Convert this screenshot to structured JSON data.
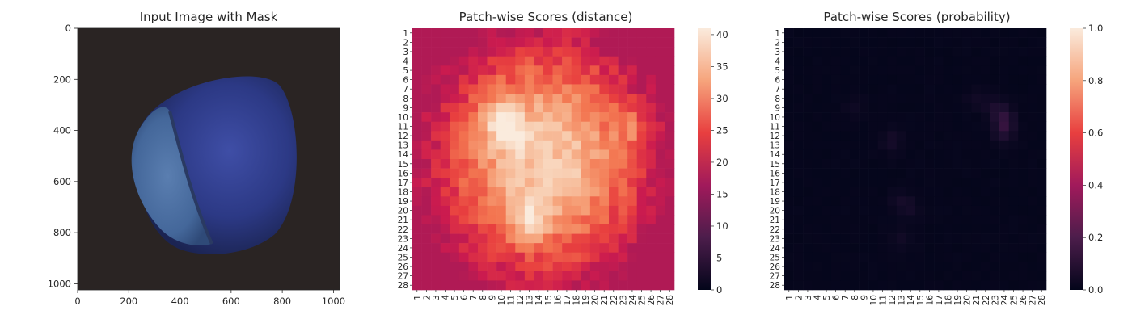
{
  "chart_data": [
    {
      "type": "image",
      "title": "Input Image with Mask",
      "xlim": [
        0,
        1024
      ],
      "ylim": [
        1024,
        0
      ],
      "x_ticks": [
        "0",
        "200",
        "400",
        "600",
        "800",
        "1000"
      ],
      "y_ticks": [
        "0",
        "200",
        "400",
        "600",
        "800",
        "1000"
      ]
    },
    {
      "type": "heatmap",
      "title": "Patch-wise Scores (distance)",
      "rows": 28,
      "cols": 28,
      "row_labels": [
        "1",
        "2",
        "3",
        "4",
        "5",
        "6",
        "7",
        "8",
        "9",
        "10",
        "11",
        "12",
        "13",
        "14",
        "15",
        "16",
        "17",
        "18",
        "19",
        "20",
        "21",
        "22",
        "23",
        "24",
        "25",
        "26",
        "27",
        "28"
      ],
      "col_labels": [
        "1",
        "2",
        "3",
        "4",
        "5",
        "6",
        "7",
        "8",
        "9",
        "10",
        "11",
        "12",
        "13",
        "14",
        "15",
        "16",
        "17",
        "18",
        "19",
        "20",
        "21",
        "22",
        "23",
        "24",
        "25",
        "26",
        "27",
        "28"
      ],
      "colorbar": {
        "min": 0,
        "max": 41,
        "ticks": [
          "0",
          "5",
          "10",
          "15",
          "20",
          "25",
          "30",
          "35",
          "40"
        ],
        "colormap": "rocket"
      }
    },
    {
      "type": "heatmap",
      "title": "Patch-wise Scores (probability)",
      "rows": 28,
      "cols": 28,
      "row_labels": [
        "1",
        "2",
        "3",
        "4",
        "5",
        "6",
        "7",
        "8",
        "9",
        "10",
        "11",
        "12",
        "13",
        "14",
        "15",
        "16",
        "17",
        "18",
        "19",
        "20",
        "21",
        "22",
        "23",
        "24",
        "25",
        "26",
        "27",
        "28"
      ],
      "col_labels": [
        "1",
        "2",
        "3",
        "4",
        "5",
        "6",
        "7",
        "8",
        "9",
        "10",
        "11",
        "12",
        "13",
        "14",
        "15",
        "16",
        "17",
        "18",
        "19",
        "20",
        "21",
        "22",
        "23",
        "24",
        "25",
        "26",
        "27",
        "28"
      ],
      "colorbar": {
        "min": 0,
        "max": 1,
        "ticks": [
          "0.0",
          "0.2",
          "0.4",
          "0.6",
          "0.8",
          "1.0"
        ],
        "colormap": "rocket"
      }
    }
  ]
}
